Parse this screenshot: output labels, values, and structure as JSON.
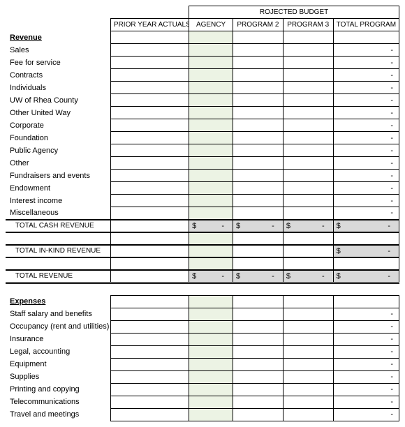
{
  "colors": {
    "agency_bg": "#ecf3e4",
    "shaded_bg": "#d9d9d9",
    "border": "#000000",
    "background": "#ffffff"
  },
  "headers": {
    "projected": "ROJECTED BUDGET",
    "prior": "PRIOR YEAR ACTUALS",
    "agency": "AGENCY",
    "program2": "PROGRAM 2",
    "program3": "PROGRAM 3",
    "total": "TOTAL PROGRAM"
  },
  "sections": {
    "revenue": "Revenue",
    "expenses": "Expenses"
  },
  "revenue_rows": [
    "Sales",
    "Fee for service",
    "Contracts",
    "Individuals",
    "UW of Rhea County",
    "Other United Way",
    "Corporate",
    "Foundation",
    "Public Agency",
    "Other",
    "Fundraisers and events",
    "Endowment",
    "Interest income",
    "Miscellaneous"
  ],
  "expense_rows": [
    "Staff salary and benefits",
    "Occupancy (rent and utilities)",
    "Insurance",
    "Legal, accounting",
    "Equipment",
    "Supplies",
    "Printing and copying",
    "Telecommunications",
    "Travel and meetings"
  ],
  "totals": {
    "cash_revenue": "TOTAL CASH REVENUE",
    "inkind_revenue": "TOTAL IN-KIND REVENUE",
    "total_revenue": "TOTAL REVENUE"
  },
  "dash": "-",
  "currency": "$"
}
